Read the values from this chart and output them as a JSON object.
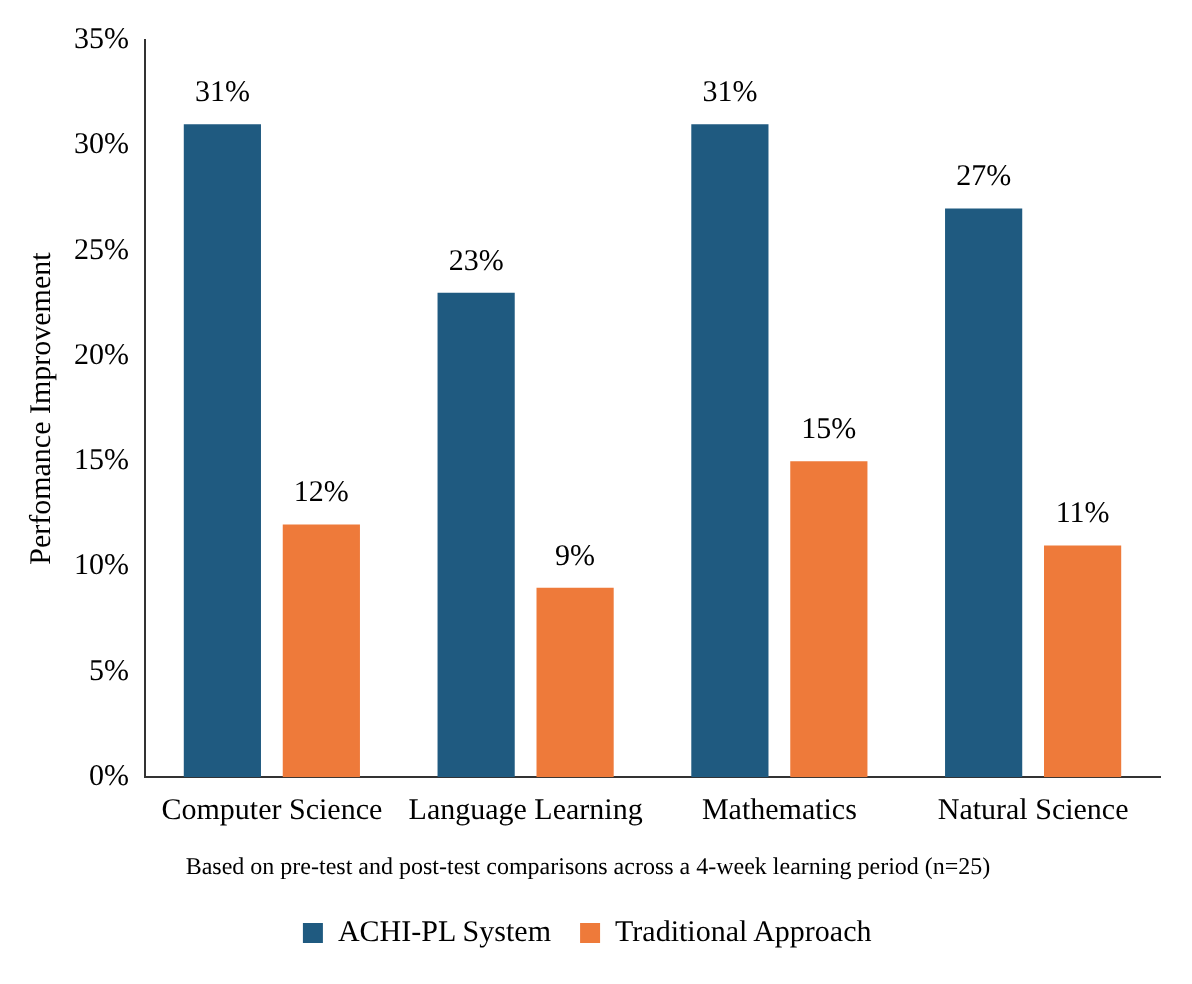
{
  "chart_data": {
    "type": "bar",
    "ylabel": "Perfomance Improvement",
    "categories": [
      "Computer Science",
      "Language Learning",
      "Mathematics",
      "Natural Science"
    ],
    "series": [
      {
        "name": "ACHI-PL System",
        "color": "#1f5a80",
        "values": [
          31,
          23,
          31,
          27
        ],
        "value_labels": [
          "31%",
          "23%",
          "31%",
          "27%"
        ]
      },
      {
        "name": "Traditional Approach",
        "color": "#ee7a3a",
        "values": [
          12,
          9,
          15,
          11
        ],
        "value_labels": [
          "12%",
          "9%",
          "15%",
          "11%"
        ]
      }
    ],
    "ylim": [
      0,
      35
    ],
    "yticks": [
      {
        "value": 0,
        "label": "0%"
      },
      {
        "value": 5,
        "label": "5%"
      },
      {
        "value": 10,
        "label": "10%"
      },
      {
        "value": 15,
        "label": "15%"
      },
      {
        "value": 20,
        "label": "20%"
      },
      {
        "value": 25,
        "label": "25%"
      },
      {
        "value": 30,
        "label": "30%"
      },
      {
        "value": 35,
        "label": "35%"
      }
    ],
    "grid": false,
    "legend": "bottom",
    "annotations": [
      "Based on pre-test and post-test comparisons across a 4-week learning period (n=25)"
    ]
  }
}
